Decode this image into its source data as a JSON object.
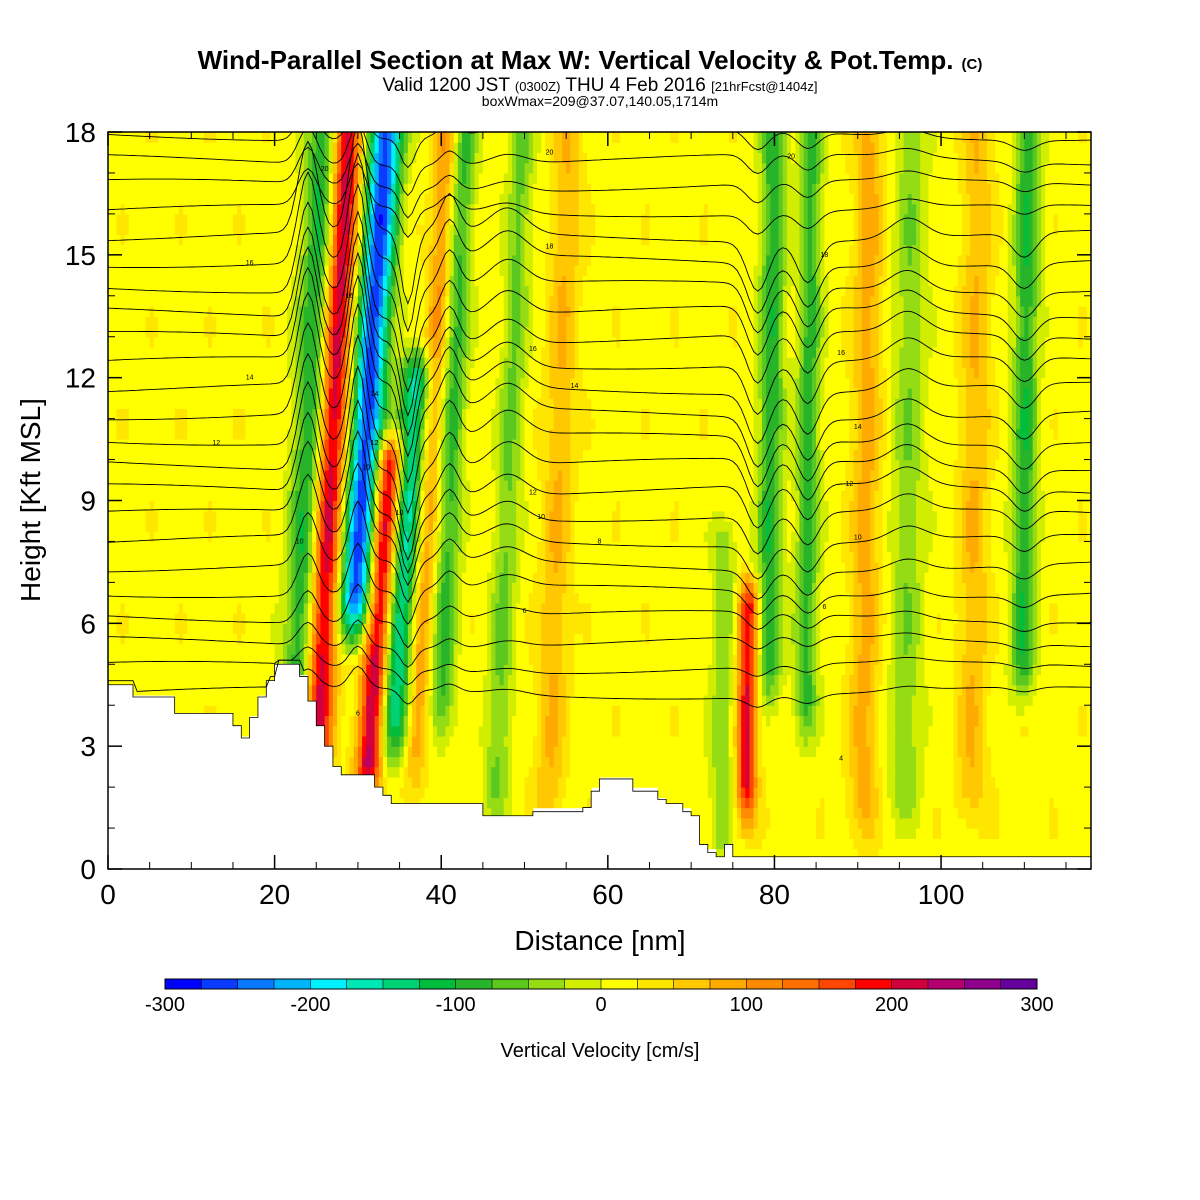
{
  "chart_data": {
    "type": "heatmap",
    "title": "Wind-Parallel Section at Max W: Vertical Velocity & Pot.Temp.",
    "title_mark": "(C)",
    "subtitle_main": "Valid 1200 JST",
    "subtitle_small1": "(0300Z)",
    "subtitle_mid": "THU 4 Feb 2016",
    "subtitle_small2": "[21hrFcst@1404z]",
    "subtitle2": "boxWmax=209@37.07,140.05,1714m",
    "xlabel": "Distance [nm]",
    "ylabel": "Height [Kft MSL]",
    "xlim": [
      0,
      118
    ],
    "ylim": [
      0,
      18
    ],
    "xticks": [
      0,
      20,
      40,
      60,
      80,
      100
    ],
    "yticks": [
      0,
      3,
      6,
      9,
      12,
      15,
      18
    ],
    "colorbar": {
      "label": "Vertical Velocity [cm/s]",
      "range": [
        -300,
        300
      ],
      "ticks": [
        -300,
        -200,
        -100,
        0,
        100,
        200,
        300
      ],
      "colors": [
        "#0000ff",
        "#0a3cff",
        "#0a78ff",
        "#00b4ff",
        "#00f0ff",
        "#00e6b4",
        "#00d278",
        "#00be3c",
        "#28b428",
        "#5ac81e",
        "#96dc14",
        "#d2ee00",
        "#ffff00",
        "#ffe600",
        "#ffc800",
        "#ffaa00",
        "#ff8c00",
        "#ff6e00",
        "#ff4600",
        "#ff0000",
        "#d2003c",
        "#b4006e",
        "#8c008c",
        "#64009b"
      ]
    },
    "w_features": [
      {
        "x": 24,
        "w": 2.0,
        "zb": 3.5,
        "zt": 18,
        "tilt": 0.22,
        "amp": -130
      },
      {
        "x": 26.5,
        "w": 1.8,
        "zb": 3.0,
        "zt": 18,
        "tilt": 0.25,
        "amp": 220
      },
      {
        "x": 30.5,
        "w": 2.0,
        "zb": 6.5,
        "zt": 18,
        "tilt": 0.32,
        "amp": -280
      },
      {
        "x": 33.5,
        "w": 1.6,
        "zb": 2.5,
        "zt": 10,
        "tilt": 0.33,
        "amp": 230
      },
      {
        "x": 36,
        "w": 1.8,
        "zb": 3.5,
        "zt": 12,
        "tilt": 0.34,
        "amp": -180
      },
      {
        "x": 38.5,
        "w": 1.4,
        "zb": 3.0,
        "zt": 18,
        "tilt": 0.25,
        "amp": 90
      },
      {
        "x": 41,
        "w": 1.5,
        "zb": 4.0,
        "zt": 18,
        "tilt": 0.2,
        "amp": -100
      },
      {
        "x": 48,
        "w": 1.5,
        "zb": 2.0,
        "zt": 18,
        "tilt": 0.2,
        "amp": -70
      },
      {
        "x": 54,
        "w": 1.8,
        "zb": 2.0,
        "zt": 18,
        "tilt": 0.15,
        "amp": 60
      },
      {
        "x": 77,
        "w": 1.2,
        "zb": 2.0,
        "zt": 6.5,
        "tilt": 0.05,
        "amp": 190
      },
      {
        "x": 74,
        "w": 1.4,
        "zb": 1.0,
        "zt": 8,
        "tilt": 0.05,
        "amp": -60
      },
      {
        "x": 79.5,
        "w": 1.5,
        "zb": 5.0,
        "zt": 18,
        "tilt": 0.05,
        "amp": -110
      },
      {
        "x": 84,
        "w": 1.4,
        "zb": 4.0,
        "zt": 18,
        "tilt": 0.05,
        "amp": -100
      },
      {
        "x": 91,
        "w": 1.8,
        "zb": 1.5,
        "zt": 18,
        "tilt": 0.05,
        "amp": 70
      },
      {
        "x": 96,
        "w": 2.0,
        "zb": 2.0,
        "zt": 18,
        "tilt": 0.05,
        "amp": -60
      },
      {
        "x": 110,
        "w": 1.5,
        "zb": 5.0,
        "zt": 18,
        "tilt": 0.05,
        "amp": -110
      },
      {
        "x": 104,
        "w": 1.8,
        "zb": 2.0,
        "zt": 18,
        "tilt": 0.05,
        "amp": 60
      }
    ],
    "terrain": [
      [
        0,
        4.5
      ],
      [
        2,
        4.5
      ],
      [
        3,
        4.2
      ],
      [
        7,
        4.2
      ],
      [
        8,
        3.8
      ],
      [
        12,
        3.8
      ],
      [
        15,
        3.5
      ],
      [
        16,
        3.2
      ],
      [
        17,
        3.7
      ],
      [
        18,
        4.2
      ],
      [
        19,
        4.6
      ],
      [
        20,
        5.0
      ],
      [
        22,
        5.0
      ],
      [
        23,
        4.7
      ],
      [
        24,
        4.1
      ],
      [
        25,
        3.5
      ],
      [
        26,
        3.0
      ],
      [
        27,
        2.5
      ],
      [
        28,
        2.3
      ],
      [
        31,
        2.3
      ],
      [
        32,
        2.0
      ],
      [
        33,
        1.8
      ],
      [
        34,
        1.6
      ],
      [
        44,
        1.6
      ],
      [
        45,
        1.3
      ],
      [
        50,
        1.3
      ],
      [
        51,
        1.4
      ],
      [
        57,
        1.5
      ],
      [
        58,
        1.9
      ],
      [
        59,
        2.2
      ],
      [
        62,
        2.2
      ],
      [
        63,
        1.9
      ],
      [
        66,
        1.7
      ],
      [
        67,
        1.6
      ],
      [
        69,
        1.4
      ],
      [
        70,
        1.3
      ],
      [
        71,
        0.6
      ],
      [
        72,
        0.4
      ],
      [
        73,
        0.3
      ],
      [
        74,
        0.6
      ],
      [
        75,
        0.3
      ],
      [
        118,
        0.3
      ]
    ],
    "theta_labels": [
      "4",
      "6",
      "8",
      "10",
      "12",
      "14",
      "16",
      "18",
      "20"
    ]
  }
}
